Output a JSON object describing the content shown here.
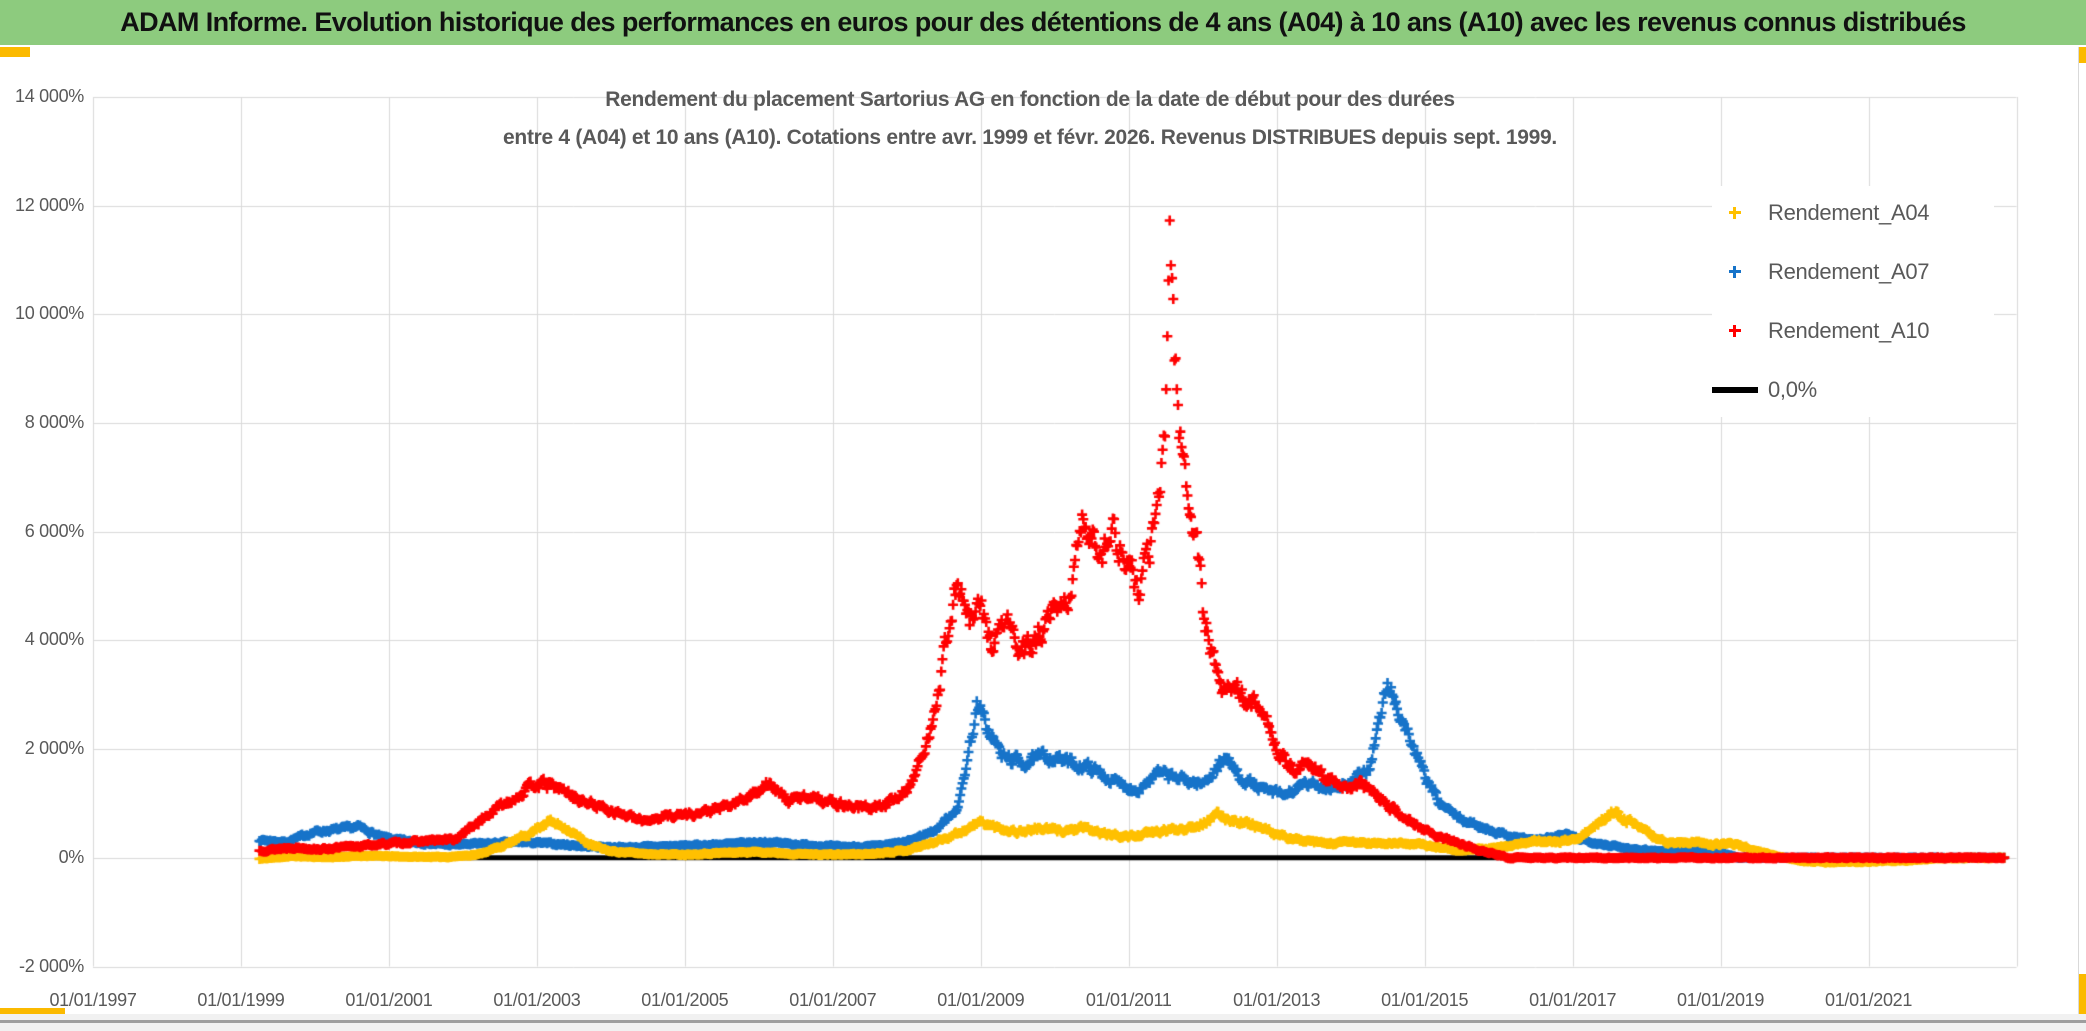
{
  "header": {
    "title": "ADAM Informe. Evolution historique des performances en euros pour des détentions de 4 ans (A04) à 10 ans (A10) avec les revenus connus distribués",
    "bg_color": "#8DCB7E"
  },
  "accents": {
    "gold_color": "#FBBA00"
  },
  "chart": {
    "title_line1": "Rendement du placement Sartorius AG en fonction de la date de début pour des durées",
    "title_line2": "entre 4 (A04) et 10 ans (A10). Cotations entre avr. 1999 et févr. 2026. Revenus DISTRIBUES depuis sept. 1999.",
    "legend": [
      {
        "label": "Rendement_A04",
        "marker": "plus",
        "color": "#FFC000"
      },
      {
        "label": "Rendement_A07",
        "marker": "plus",
        "color": "#1673C9"
      },
      {
        "label": "Rendement_A10",
        "marker": "plus",
        "color": "#FF0000"
      },
      {
        "label": "0,0%",
        "marker": "line",
        "color": "#000000"
      }
    ]
  },
  "chart_data": {
    "type": "scatter",
    "title": "Rendement du placement Sartorius AG en fonction de la date de début pour des durées entre 4 (A04) et 10 ans (A10)",
    "grid": true,
    "legend_position": "right-top",
    "x_axis": {
      "tick_labels": [
        "01/01/1997",
        "01/01/1999",
        "01/01/2001",
        "01/01/2003",
        "01/01/2005",
        "01/01/2007",
        "01/01/2009",
        "01/01/2011",
        "01/01/2013",
        "01/01/2015",
        "01/01/2017",
        "01/01/2019",
        "01/01/2021"
      ],
      "tick_years": [
        1997,
        1999,
        2001,
        2003,
        2005,
        2007,
        2009,
        2011,
        2013,
        2015,
        2017,
        2019,
        2021
      ],
      "range_years": [
        1997,
        2023
      ]
    },
    "y_axis": {
      "tick_labels": [
        "14 000%",
        "12 000%",
        "10 000%",
        "8 000%",
        "6 000%",
        "4 000%",
        "2 000%",
        "0%",
        "-2 000%"
      ],
      "tick_values": [
        14000,
        12000,
        10000,
        8000,
        6000,
        4000,
        2000,
        0,
        -2000
      ],
      "range": [
        -2000,
        14000
      ],
      "unit": "%"
    },
    "series": [
      {
        "name": "0,0%",
        "type": "line",
        "color": "#000000",
        "width": 5,
        "keypoints": [
          [
            1999.25,
            0
          ],
          [
            2022.85,
            0
          ]
        ]
      },
      {
        "name": "Rendement_A07",
        "type": "scatter",
        "color": "#1673C9",
        "marker": "plus",
        "seed": 7,
        "noise_rel": 0.09,
        "noise_abs": 12,
        "keypoints": [
          [
            1999.25,
            330
          ],
          [
            1999.6,
            290
          ],
          [
            2000.0,
            480
          ],
          [
            2000.3,
            520
          ],
          [
            2000.6,
            570
          ],
          [
            2000.9,
            380
          ],
          [
            2001.3,
            290
          ],
          [
            2001.8,
            240
          ],
          [
            2002.3,
            260
          ],
          [
            2002.8,
            290
          ],
          [
            2003.2,
            260
          ],
          [
            2003.7,
            210
          ],
          [
            2004.2,
            190
          ],
          [
            2004.7,
            210
          ],
          [
            2005.2,
            230
          ],
          [
            2005.7,
            260
          ],
          [
            2006.1,
            290
          ],
          [
            2006.6,
            240
          ],
          [
            2007.1,
            200
          ],
          [
            2007.6,
            210
          ],
          [
            2008.0,
            290
          ],
          [
            2008.4,
            520
          ],
          [
            2008.7,
            950
          ],
          [
            2008.95,
            2800
          ],
          [
            2009.1,
            2350
          ],
          [
            2009.3,
            1850
          ],
          [
            2009.6,
            1750
          ],
          [
            2009.9,
            1880
          ],
          [
            2010.2,
            1750
          ],
          [
            2010.5,
            1650
          ],
          [
            2010.8,
            1400
          ],
          [
            2011.1,
            1250
          ],
          [
            2011.4,
            1550
          ],
          [
            2011.7,
            1450
          ],
          [
            2012.0,
            1350
          ],
          [
            2012.3,
            1850
          ],
          [
            2012.5,
            1500
          ],
          [
            2012.8,
            1250
          ],
          [
            2013.1,
            1150
          ],
          [
            2013.4,
            1350
          ],
          [
            2013.7,
            1300
          ],
          [
            2014.0,
            1350
          ],
          [
            2014.25,
            1650
          ],
          [
            2014.5,
            3200
          ],
          [
            2014.65,
            2700
          ],
          [
            2014.8,
            2200
          ],
          [
            2015.0,
            1500
          ],
          [
            2015.2,
            1000
          ],
          [
            2015.5,
            700
          ],
          [
            2015.8,
            550
          ],
          [
            2016.1,
            420
          ],
          [
            2016.5,
            320
          ],
          [
            2016.9,
            420
          ],
          [
            2017.3,
            280
          ],
          [
            2017.7,
            180
          ],
          [
            2018.1,
            130
          ],
          [
            2018.5,
            110
          ],
          [
            2018.8,
            160
          ],
          [
            2019.1,
            60
          ],
          [
            2019.25,
            0
          ],
          [
            2022.85,
            0
          ]
        ]
      },
      {
        "name": "Rendement_A04",
        "type": "scatter",
        "color": "#FFC000",
        "marker": "plus",
        "seed": 11,
        "noise_rel": 0.12,
        "noise_abs": 9,
        "keypoints": [
          [
            1999.25,
            -20
          ],
          [
            1999.7,
            30
          ],
          [
            2000.2,
            10
          ],
          [
            2000.7,
            40
          ],
          [
            2001.2,
            20
          ],
          [
            2001.8,
            15
          ],
          [
            2002.2,
            60
          ],
          [
            2002.6,
            250
          ],
          [
            2002.9,
            450
          ],
          [
            2003.15,
            680
          ],
          [
            2003.4,
            550
          ],
          [
            2003.7,
            250
          ],
          [
            2004.0,
            120
          ],
          [
            2004.5,
            70
          ],
          [
            2005.0,
            60
          ],
          [
            2005.5,
            90
          ],
          [
            2006.0,
            110
          ],
          [
            2006.5,
            70
          ],
          [
            2007.0,
            60
          ],
          [
            2007.5,
            70
          ],
          [
            2008.0,
            140
          ],
          [
            2008.4,
            300
          ],
          [
            2008.8,
            520
          ],
          [
            2009.0,
            660
          ],
          [
            2009.2,
            560
          ],
          [
            2009.5,
            480
          ],
          [
            2009.8,
            540
          ],
          [
            2010.1,
            500
          ],
          [
            2010.4,
            540
          ],
          [
            2010.7,
            430
          ],
          [
            2011.0,
            390
          ],
          [
            2011.4,
            480
          ],
          [
            2011.8,
            560
          ],
          [
            2012.0,
            640
          ],
          [
            2012.2,
            780
          ],
          [
            2012.4,
            700
          ],
          [
            2012.7,
            600
          ],
          [
            2013.0,
            420
          ],
          [
            2013.4,
            300
          ],
          [
            2013.7,
            260
          ],
          [
            2014.0,
            290
          ],
          [
            2014.4,
            260
          ],
          [
            2014.8,
            270
          ],
          [
            2015.1,
            210
          ],
          [
            2015.5,
            140
          ],
          [
            2015.9,
            170
          ],
          [
            2016.2,
            220
          ],
          [
            2016.5,
            330
          ],
          [
            2016.8,
            280
          ],
          [
            2017.1,
            380
          ],
          [
            2017.35,
            620
          ],
          [
            2017.55,
            860
          ],
          [
            2017.8,
            640
          ],
          [
            2018.0,
            460
          ],
          [
            2018.3,
            270
          ],
          [
            2018.6,
            290
          ],
          [
            2018.9,
            240
          ],
          [
            2019.2,
            260
          ],
          [
            2019.5,
            120
          ],
          [
            2019.8,
            20
          ],
          [
            2020.1,
            -60
          ],
          [
            2020.5,
            -80
          ],
          [
            2021.0,
            -70
          ],
          [
            2021.5,
            -50
          ],
          [
            2022.0,
            -10
          ],
          [
            2022.85,
            0
          ]
        ]
      },
      {
        "name": "Rendement_A10",
        "type": "scatter",
        "color": "#FF0000",
        "marker": "plus",
        "seed": 13,
        "noise_rel": 0.09,
        "noise_abs": 18,
        "keypoints": [
          [
            1999.25,
            130
          ],
          [
            1999.7,
            190
          ],
          [
            2000.1,
            160
          ],
          [
            2000.6,
            220
          ],
          [
            2001.0,
            260
          ],
          [
            2001.5,
            310
          ],
          [
            2001.9,
            340
          ],
          [
            2002.2,
            650
          ],
          [
            2002.5,
            950
          ],
          [
            2002.75,
            1150
          ],
          [
            2003.0,
            1380
          ],
          [
            2003.3,
            1280
          ],
          [
            2003.6,
            1050
          ],
          [
            2004.0,
            880
          ],
          [
            2004.4,
            680
          ],
          [
            2004.8,
            780
          ],
          [
            2005.2,
            820
          ],
          [
            2005.6,
            950
          ],
          [
            2005.9,
            1150
          ],
          [
            2006.1,
            1380
          ],
          [
            2006.4,
            1050
          ],
          [
            2006.7,
            1150
          ],
          [
            2007.0,
            1020
          ],
          [
            2007.4,
            920
          ],
          [
            2007.7,
            950
          ],
          [
            2008.0,
            1250
          ],
          [
            2008.25,
            1950
          ],
          [
            2008.45,
            3300
          ],
          [
            2008.6,
            4600
          ],
          [
            2008.7,
            5000
          ],
          [
            2008.85,
            4300
          ],
          [
            2009.0,
            4600
          ],
          [
            2009.15,
            3900
          ],
          [
            2009.35,
            4400
          ],
          [
            2009.55,
            3700
          ],
          [
            2009.75,
            4000
          ],
          [
            2009.95,
            4400
          ],
          [
            2010.15,
            4600
          ],
          [
            2010.4,
            6200
          ],
          [
            2010.6,
            5700
          ],
          [
            2010.8,
            6000
          ],
          [
            2011.0,
            5300
          ],
          [
            2011.15,
            4900
          ],
          [
            2011.3,
            5800
          ],
          [
            2011.42,
            6600
          ],
          [
            2011.5,
            8200
          ],
          [
            2011.55,
            11800
          ],
          [
            2011.62,
            9300
          ],
          [
            2011.7,
            7800
          ],
          [
            2011.8,
            6600
          ],
          [
            2011.9,
            6100
          ],
          [
            2012.0,
            4600
          ],
          [
            2012.15,
            3600
          ],
          [
            2012.3,
            3000
          ],
          [
            2012.45,
            3250
          ],
          [
            2012.6,
            2750
          ],
          [
            2012.75,
            2950
          ],
          [
            2012.9,
            2300
          ],
          [
            2013.05,
            1900
          ],
          [
            2013.25,
            1600
          ],
          [
            2013.45,
            1750
          ],
          [
            2013.7,
            1450
          ],
          [
            2013.95,
            1250
          ],
          [
            2014.2,
            1350
          ],
          [
            2014.45,
            1000
          ],
          [
            2014.7,
            800
          ],
          [
            2014.95,
            550
          ],
          [
            2015.2,
            380
          ],
          [
            2015.5,
            250
          ],
          [
            2015.8,
            120
          ],
          [
            2016.05,
            30
          ],
          [
            2016.15,
            0
          ],
          [
            2022.85,
            0
          ]
        ]
      }
    ]
  }
}
